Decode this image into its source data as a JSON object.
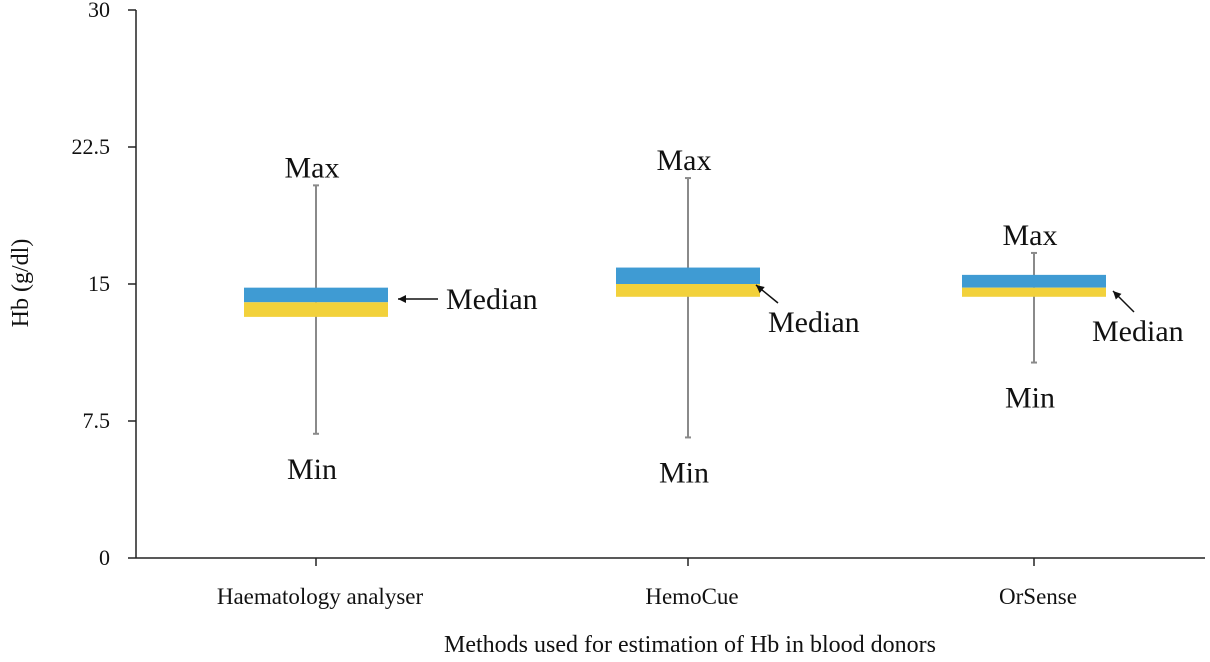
{
  "chart_data": {
    "type": "box",
    "title": "",
    "xlabel": "Methods used for estimation of Hb in blood donors",
    "ylabel": "Hb (g/dl)",
    "ylim": [
      0,
      30
    ],
    "y_ticks": [
      "0",
      "7.5",
      "15",
      "22.5",
      "30"
    ],
    "categories": [
      "Haematology analyser",
      "HemoCue",
      "OrSense"
    ],
    "boxes": [
      {
        "category": "Haematology analyser",
        "min": 6.8,
        "q1": 13.2,
        "median": 14.0,
        "q3": 14.8,
        "max": 20.4
      },
      {
        "category": "HemoCue",
        "min": 6.6,
        "q1": 14.3,
        "median": 15.0,
        "q3": 15.9,
        "max": 20.8
      },
      {
        "category": "OrSense",
        "min": 10.7,
        "q1": 14.3,
        "median": 14.8,
        "q3": 15.5,
        "max": 16.7
      }
    ],
    "annotations": {
      "max_label": "Max",
      "min_label": "Min",
      "median_label": "Median"
    },
    "colors": {
      "upper_box": "#3f9bd3",
      "lower_box": "#f2d13b",
      "whisker": "#8a8a8a",
      "axis": "#222222"
    },
    "grid": false,
    "legend": "none"
  }
}
